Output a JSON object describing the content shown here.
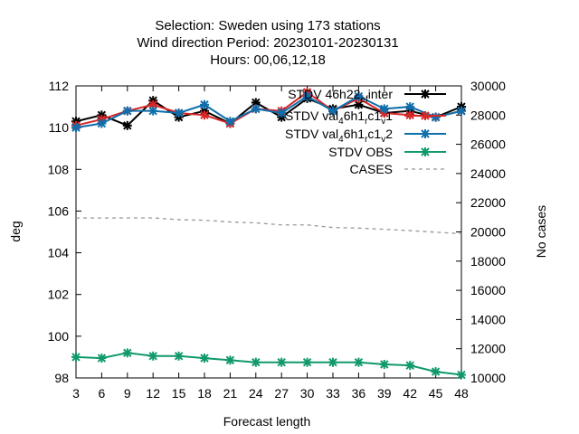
{
  "chart_data": {
    "type": "line",
    "title_lines": [
      "Selection: Sweden using   173 stations",
      "Wind direction   Period: 20230101-20230131",
      "Hours:  00,06,12,18"
    ],
    "xlabel": "Forecast length",
    "ylabel": "deg",
    "y2label": "No cases",
    "x": [
      3,
      6,
      9,
      12,
      15,
      18,
      21,
      24,
      27,
      30,
      33,
      36,
      39,
      42,
      45,
      48
    ],
    "xlim": [
      3,
      48
    ],
    "ylim": [
      98,
      112
    ],
    "y2lim": [
      10000,
      30000
    ],
    "yticks": [
      98,
      100,
      102,
      104,
      106,
      108,
      110,
      112
    ],
    "y2ticks": [
      10000,
      12000,
      14000,
      16000,
      18000,
      20000,
      22000,
      24000,
      26000,
      28000,
      30000
    ],
    "legend_position": "top-right",
    "series": [
      {
        "name": "STDV 46h22_ef_inter",
        "legend_base": "STDV 46h22",
        "legend_sub": "ef",
        "legend_tail": "inter",
        "color": "#000000",
        "marker": "x",
        "axis": "y1",
        "values": [
          110.3,
          110.6,
          110.1,
          111.3,
          110.5,
          110.8,
          110.2,
          111.2,
          110.5,
          111.4,
          110.9,
          111.1,
          110.7,
          110.8,
          110.5,
          111.0
        ]
      },
      {
        "name": "STDV val_4 6h1_r c1_v 1",
        "legend_base": "STDV val",
        "legend_sub1": "4",
        "legend_mid": "6h1",
        "legend_sub2": "r",
        "legend_mid2": "c1",
        "legend_sub3": "v",
        "legend_tail": "1",
        "color": "#d62728",
        "marker": "x",
        "axis": "y1",
        "values": [
          110.1,
          110.4,
          110.8,
          111.1,
          110.7,
          110.6,
          110.2,
          110.9,
          110.8,
          111.7,
          110.8,
          111.4,
          110.7,
          110.6,
          110.5,
          110.8
        ]
      },
      {
        "name": "STDV val_4 6h1_r c1_v 2",
        "legend_base": "STDV val",
        "legend_sub1": "4",
        "legend_mid": "6h1",
        "legend_sub2": "r",
        "legend_mid2": "c1",
        "legend_sub3": "v",
        "legend_tail": "2",
        "color": "#0f6eab",
        "marker": "x",
        "axis": "y1",
        "values": [
          110.0,
          110.2,
          110.8,
          110.8,
          110.7,
          111.1,
          110.3,
          110.9,
          110.7,
          111.5,
          110.8,
          111.5,
          110.9,
          111.0,
          110.5,
          110.8
        ]
      },
      {
        "name": "STDV OBS",
        "color": "#10996b",
        "marker": "x",
        "axis": "y1",
        "values": [
          99.0,
          98.95,
          99.2,
          99.05,
          99.05,
          98.95,
          98.85,
          98.75,
          98.75,
          98.75,
          98.75,
          98.75,
          98.65,
          98.6,
          98.3,
          98.15
        ]
      },
      {
        "name": "CASES",
        "color": "#999999",
        "dashed": true,
        "axis": "y2",
        "values": [
          20950,
          20950,
          20960,
          20960,
          20840,
          20800,
          20680,
          20620,
          20480,
          20480,
          20300,
          20260,
          20180,
          20090,
          19980,
          19880
        ]
      }
    ]
  }
}
